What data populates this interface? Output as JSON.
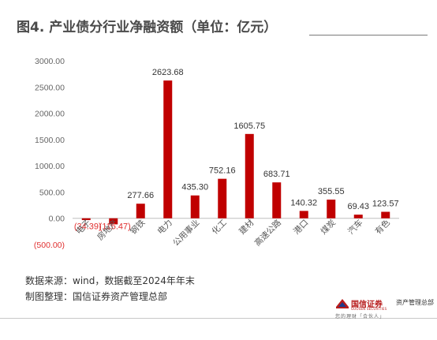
{
  "title": "图4. 产业债分行业净融资额（单位：亿元）",
  "chart_data": {
    "type": "bar",
    "title": "",
    "xlabel": "",
    "ylabel": "",
    "ylim": [
      -500,
      3000
    ],
    "yticks": [
      -500,
      0,
      500,
      1000,
      1500,
      2000,
      2500,
      3000
    ],
    "ytick_labels": [
      "(500.00)",
      "0.00",
      "500.00",
      "1000.00",
      "1500.00",
      "2000.00",
      "2500.00",
      "3000.00"
    ],
    "grid": false,
    "legend": "none",
    "bar_color": "#c00000",
    "negative_label_color": "#e03030",
    "positive_label_color": "#333333",
    "categories": [
      "电子",
      "房地产",
      "钢铁",
      "电力",
      "公用事业",
      "化工",
      "建材",
      "高速公路",
      "港口",
      "煤炭",
      "汽车",
      "有色"
    ],
    "values": [
      -34.39,
      -115.47,
      277.66,
      2623.68,
      435.3,
      752.16,
      1605.75,
      683.71,
      140.32,
      355.55,
      69.43,
      123.57
    ],
    "value_labels": [
      "(34.39)",
      "(115.47)",
      "277.66",
      "2623.68",
      "435.30",
      "752.16",
      "1605.75",
      "683.71",
      "140.32",
      "355.55",
      "69.43",
      "123.57"
    ]
  },
  "source": {
    "line1": "数据来源：wind，数据截至2024年年末",
    "line2": "制图整理：国信证券资产管理总部"
  },
  "logo": {
    "name": "国信证券",
    "english": "GUOSEN SECURITIES",
    "department": "资产管理总部",
    "slogan": "您的理财「合伙人」",
    "color": "#b71c1c"
  }
}
